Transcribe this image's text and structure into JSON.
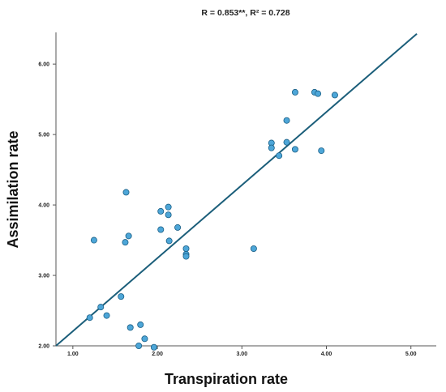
{
  "chart_data": {
    "type": "scatter",
    "title": "R = 0.853**, R² = 0.728",
    "xlabel": "Transpiration rate",
    "ylabel": "Assimilation rate",
    "xlim": [
      0.8,
      5.3
    ],
    "ylim": [
      2.0,
      6.45
    ],
    "x_ticks": [
      "1.00",
      "2.00",
      "3.00",
      "4.00",
      "5.00"
    ],
    "y_ticks": [
      "2.00",
      "3.00",
      "4.00",
      "5.00",
      "6.00"
    ],
    "grid": false,
    "legend": "none",
    "colors": {
      "point_fill": "#4da6d8",
      "point_stroke": "#1a5f86",
      "fit_line": "#1b5e7a",
      "axis": "#555555"
    },
    "points": [
      {
        "x": 1.2,
        "y": 2.4
      },
      {
        "x": 1.25,
        "y": 3.5
      },
      {
        "x": 1.33,
        "y": 2.55
      },
      {
        "x": 1.4,
        "y": 2.43
      },
      {
        "x": 1.57,
        "y": 2.7
      },
      {
        "x": 1.62,
        "y": 3.47
      },
      {
        "x": 1.63,
        "y": 4.18
      },
      {
        "x": 1.66,
        "y": 3.56
      },
      {
        "x": 1.68,
        "y": 2.26
      },
      {
        "x": 1.78,
        "y": 2.0
      },
      {
        "x": 1.8,
        "y": 2.3
      },
      {
        "x": 1.85,
        "y": 2.1
      },
      {
        "x": 1.96,
        "y": 1.98
      },
      {
        "x": 2.04,
        "y": 3.91
      },
      {
        "x": 2.04,
        "y": 3.65
      },
      {
        "x": 2.13,
        "y": 3.97
      },
      {
        "x": 2.13,
        "y": 3.86
      },
      {
        "x": 2.14,
        "y": 3.49
      },
      {
        "x": 2.24,
        "y": 3.68
      },
      {
        "x": 2.34,
        "y": 3.38
      },
      {
        "x": 2.34,
        "y": 3.3
      },
      {
        "x": 2.34,
        "y": 3.27
      },
      {
        "x": 3.14,
        "y": 3.38
      },
      {
        "x": 3.35,
        "y": 4.88
      },
      {
        "x": 3.35,
        "y": 4.81
      },
      {
        "x": 3.44,
        "y": 4.7
      },
      {
        "x": 3.53,
        "y": 4.89
      },
      {
        "x": 3.53,
        "y": 5.2
      },
      {
        "x": 3.63,
        "y": 5.6
      },
      {
        "x": 3.63,
        "y": 4.79
      },
      {
        "x": 3.86,
        "y": 5.6
      },
      {
        "x": 3.9,
        "y": 5.58
      },
      {
        "x": 3.94,
        "y": 4.77
      },
      {
        "x": 4.1,
        "y": 5.56
      }
    ],
    "fit_line": {
      "x": [
        0.8,
        5.07
      ],
      "y": [
        2.0,
        6.43
      ]
    }
  }
}
